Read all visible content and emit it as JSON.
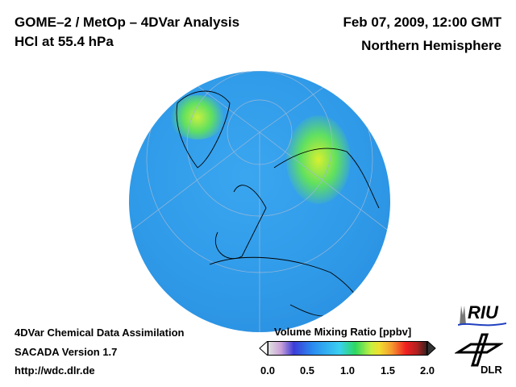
{
  "header": {
    "title_line1": "GOME–2 / MetOp – 4DVar Analysis",
    "title_line2": "HCl at 55.4 hPa",
    "date": "Feb 07, 2009, 12:00 GMT",
    "region": "Northern Hemisphere"
  },
  "footer": {
    "line1": "4DVar Chemical Data Assimilation",
    "line2": "SACADA Version 1.7",
    "line3": "http://wdc.dlr.de"
  },
  "colorbar": {
    "title": "Volume Mixing Ratio [ppbv]",
    "ticks": [
      "0.0",
      "0.5",
      "1.0",
      "1.5",
      "2.0"
    ],
    "min": 0.0,
    "max": 2.0
  },
  "logos": {
    "riu": "RIU",
    "dlr": "DLR"
  }
}
